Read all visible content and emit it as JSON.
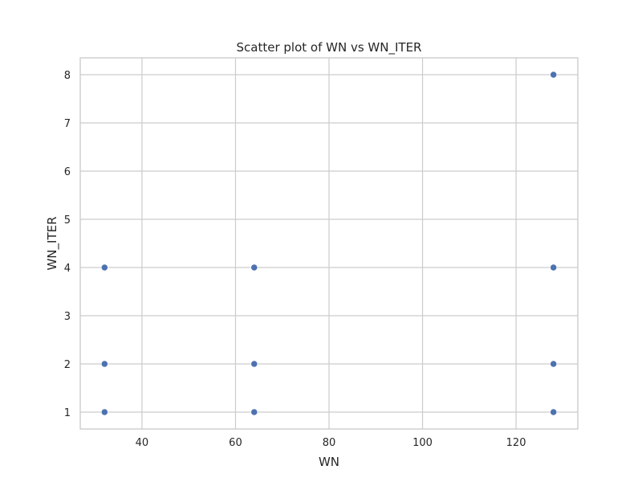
{
  "chart_data": {
    "type": "scatter",
    "title": "Scatter plot of WN vs WN_ITER",
    "xlabel": "WN",
    "ylabel": "WN_ITER",
    "xlim": [
      26.8,
      133.2
    ],
    "ylim": [
      0.65,
      8.35
    ],
    "x_ticks": [
      40,
      60,
      80,
      100,
      120
    ],
    "y_ticks": [
      1,
      2,
      3,
      4,
      5,
      6,
      7,
      8
    ],
    "grid": true,
    "point_color": "#4c72b0",
    "points": [
      {
        "x": 32,
        "y": 1
      },
      {
        "x": 32,
        "y": 2
      },
      {
        "x": 32,
        "y": 4
      },
      {
        "x": 64,
        "y": 1
      },
      {
        "x": 64,
        "y": 2
      },
      {
        "x": 64,
        "y": 4
      },
      {
        "x": 128,
        "y": 1
      },
      {
        "x": 128,
        "y": 2
      },
      {
        "x": 128,
        "y": 4
      },
      {
        "x": 128,
        "y": 8
      }
    ]
  }
}
